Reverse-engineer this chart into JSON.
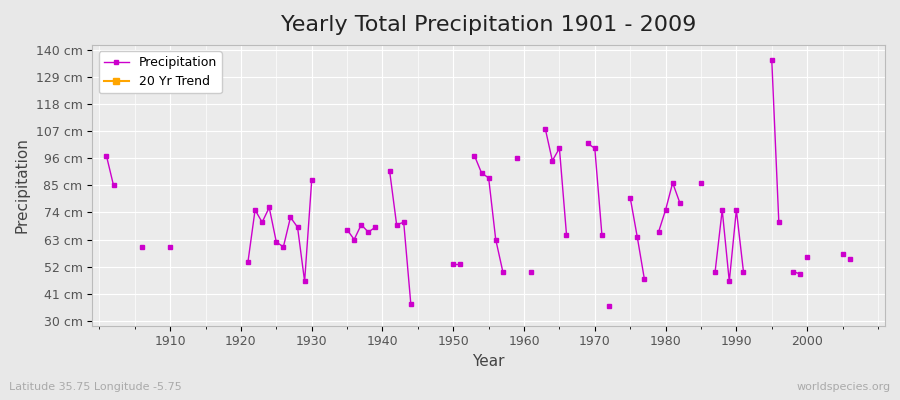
{
  "title": "Yearly Total Precipitation 1901 - 2009",
  "xlabel": "Year",
  "ylabel": "Precipitation",
  "lat_lon_label": "Latitude 35.75 Longitude -5.75",
  "watermark": "worldspecies.org",
  "yticks": [
    30,
    41,
    52,
    63,
    74,
    85,
    96,
    107,
    118,
    129,
    140
  ],
  "ytick_labels": [
    "30 cm",
    "41 cm",
    "52 cm",
    "63 cm",
    "74 cm",
    "85 cm",
    "96 cm",
    "107 cm",
    "118 cm",
    "129 cm",
    "140 cm"
  ],
  "ylim": [
    28,
    142
  ],
  "xlim": [
    1899,
    2011
  ],
  "background_color": "#e8e8e8",
  "plot_bg_color": "#ebebeb",
  "line_color": "#cc00cc",
  "marker_color": "#cc00cc",
  "grid_color": "#ffffff",
  "legend_frame_color": "#ffffff",
  "title_fontsize": 16,
  "axis_label_fontsize": 11,
  "tick_fontsize": 9,
  "legend_fontsize": 9,
  "xtick_positions": [
    1910,
    1920,
    1930,
    1940,
    1950,
    1960,
    1970,
    1980,
    1990,
    2000
  ],
  "segments": [
    {
      "years": [
        1901,
        1902
      ],
      "precip": [
        97,
        85
      ]
    },
    {
      "years": [
        1906
      ],
      "precip": [
        60
      ]
    },
    {
      "years": [
        1910
      ],
      "precip": [
        60
      ]
    },
    {
      "years": [
        1921,
        1922,
        1923,
        1924,
        1925,
        1926,
        1927,
        1928,
        1929,
        1930
      ],
      "precip": [
        54,
        75,
        70,
        76,
        62,
        60,
        72,
        68,
        46,
        87
      ]
    },
    {
      "years": [
        1935,
        1936,
        1937,
        1938,
        1939
      ],
      "precip": [
        67,
        63,
        69,
        66,
        68
      ]
    },
    {
      "years": [
        1941,
        1942,
        1943,
        1944
      ],
      "precip": [
        91,
        69,
        70,
        37
      ]
    },
    {
      "years": [
        1950,
        1951
      ],
      "precip": [
        53,
        53
      ]
    },
    {
      "years": [
        1953,
        1954,
        1955,
        1956,
        1957
      ],
      "precip": [
        97,
        90,
        88,
        63,
        50
      ]
    },
    {
      "years": [
        1959
      ],
      "precip": [
        96
      ]
    },
    {
      "years": [
        1961
      ],
      "precip": [
        50
      ]
    },
    {
      "years": [
        1963,
        1964,
        1965,
        1966
      ],
      "precip": [
        108,
        95,
        100,
        65
      ]
    },
    {
      "years": [
        1969,
        1970,
        1971
      ],
      "precip": [
        102,
        100,
        65
      ]
    },
    {
      "years": [
        1972
      ],
      "precip": [
        36
      ]
    },
    {
      "years": [
        1975,
        1976,
        1977
      ],
      "precip": [
        80,
        64,
        47
      ]
    },
    {
      "years": [
        1979,
        1980,
        1981,
        1982
      ],
      "precip": [
        66,
        75,
        86,
        78
      ]
    },
    {
      "years": [
        1985
      ],
      "precip": [
        86
      ]
    },
    {
      "years": [
        1987,
        1988,
        1989,
        1990,
        1991
      ],
      "precip": [
        50,
        75,
        46,
        75,
        50
      ]
    },
    {
      "years": [
        1995,
        1996
      ],
      "precip": [
        136,
        70
      ]
    },
    {
      "years": [
        1998,
        1999
      ],
      "precip": [
        50,
        49
      ]
    },
    {
      "years": [
        2000
      ],
      "precip": [
        56
      ]
    },
    {
      "years": [
        2005
      ],
      "precip": [
        57
      ]
    },
    {
      "years": [
        2006
      ],
      "precip": [
        55
      ]
    }
  ]
}
